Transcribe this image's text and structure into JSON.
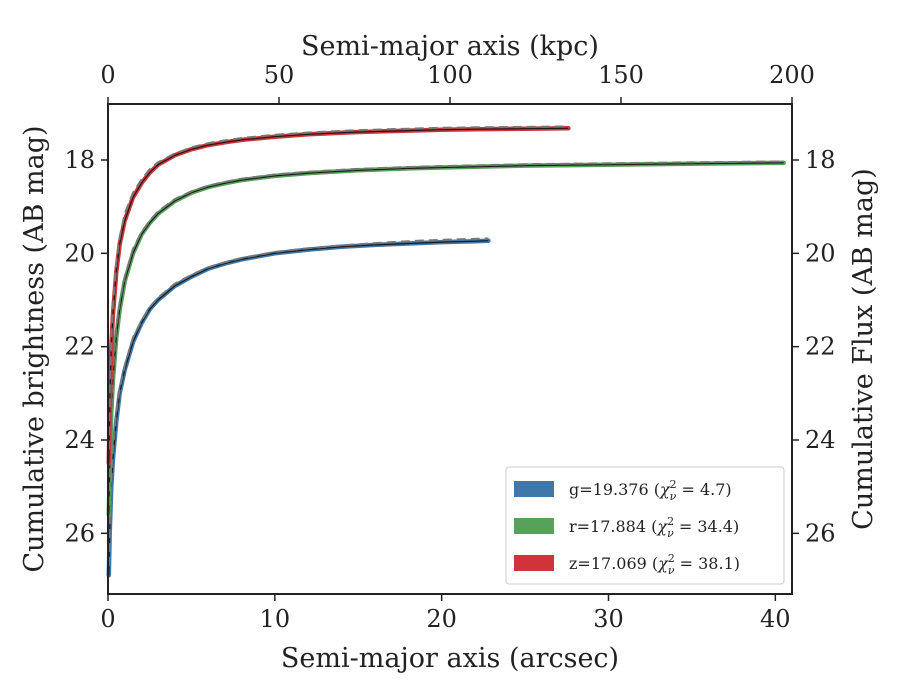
{
  "chart_data": {
    "type": "line",
    "xlabel": "Semi-major axis (arcsec)",
    "x2label": "Semi-major axis (kpc)",
    "ylabel": "Cumulative brightness (AB mag)",
    "y2label": "Cumulative Flux (AB mag)",
    "xlim": [
      0,
      41
    ],
    "x2lim": [
      0,
      200
    ],
    "ylim": [
      27.3,
      16.8
    ],
    "y_inverted": true,
    "xticks": [
      "0",
      "10",
      "20",
      "30",
      "40"
    ],
    "x2ticks": [
      "0",
      "50",
      "100",
      "150",
      "200"
    ],
    "yticks": [
      "18",
      "20",
      "22",
      "24",
      "26"
    ],
    "y2ticks": [
      "18",
      "20",
      "22",
      "24",
      "26"
    ],
    "grid": false,
    "legend_position": "lower-right",
    "series": [
      {
        "name": "g=19.376 (χ²ν = 4.7)",
        "legend_main": "g=19.376 (",
        "legend_var": "χ",
        "legend_sup": "2",
        "legend_sub": "ν",
        "legend_eq": " = 4.7)",
        "color": "#3f78a8",
        "x": [
          0.05,
          0.1,
          0.2,
          0.3,
          0.5,
          0.7,
          1.0,
          1.5,
          2,
          2.5,
          3,
          4,
          5,
          6,
          7,
          8,
          10,
          12,
          14,
          16,
          18,
          20,
          22,
          22.8
        ],
        "y": [
          26.9,
          26.0,
          25.0,
          24.4,
          23.6,
          23.0,
          22.5,
          21.9,
          21.5,
          21.2,
          21.0,
          20.7,
          20.5,
          20.33,
          20.22,
          20.13,
          20.0,
          19.92,
          19.86,
          19.82,
          19.79,
          19.76,
          19.74,
          19.73
        ],
        "model_y": [
          26.7,
          25.8,
          24.8,
          24.2,
          23.4,
          22.9,
          22.4,
          21.8,
          21.45,
          21.15,
          20.95,
          20.65,
          20.46,
          20.3,
          20.19,
          20.1,
          19.97,
          19.89,
          19.83,
          19.78,
          19.74,
          19.71,
          19.69,
          19.68
        ]
      },
      {
        "name": "r=17.884 (χ²ν = 34.4)",
        "legend_main": "r=17.884 (",
        "legend_var": "χ",
        "legend_sup": "2",
        "legend_sub": "ν",
        "legend_eq": " = 34.4)",
        "color": "#58a15a",
        "x": [
          0.05,
          0.1,
          0.2,
          0.3,
          0.5,
          0.7,
          1.0,
          1.5,
          2,
          2.5,
          3,
          4,
          5,
          6,
          7,
          8,
          10,
          12,
          15,
          18,
          20,
          25,
          30,
          35,
          40.5
        ],
        "y": [
          25.6,
          24.6,
          23.4,
          22.7,
          21.8,
          21.2,
          20.6,
          20.0,
          19.6,
          19.35,
          19.15,
          18.88,
          18.7,
          18.58,
          18.5,
          18.43,
          18.34,
          18.28,
          18.22,
          18.18,
          18.16,
          18.12,
          18.1,
          18.08,
          18.06
        ],
        "model_y": [
          25.4,
          24.4,
          23.2,
          22.5,
          21.6,
          21.05,
          20.5,
          19.9,
          19.55,
          19.3,
          19.1,
          18.84,
          18.67,
          18.55,
          18.47,
          18.4,
          18.31,
          18.25,
          18.19,
          18.15,
          18.13,
          18.09,
          18.07,
          18.05,
          18.03
        ]
      },
      {
        "name": "z=17.069 (χ²ν = 38.1)",
        "legend_main": "z=17.069 (",
        "legend_var": "χ",
        "legend_sup": "2",
        "legend_sub": "ν",
        "legend_eq": " = 38.1)",
        "color": "#d13438",
        "x": [
          0.05,
          0.1,
          0.2,
          0.3,
          0.5,
          0.7,
          1.0,
          1.5,
          2,
          2.5,
          3,
          4,
          5,
          6,
          7,
          8,
          10,
          12,
          15,
          18,
          20,
          22,
          25,
          27.6
        ],
        "y": [
          24.5,
          23.3,
          22.0,
          21.3,
          20.4,
          19.8,
          19.3,
          18.8,
          18.5,
          18.27,
          18.1,
          17.9,
          17.77,
          17.68,
          17.62,
          17.57,
          17.5,
          17.45,
          17.4,
          17.37,
          17.35,
          17.34,
          17.33,
          17.32
        ],
        "model_y": [
          24.2,
          23.0,
          21.8,
          21.1,
          20.2,
          19.65,
          19.15,
          18.7,
          18.42,
          18.2,
          18.05,
          17.86,
          17.73,
          17.64,
          17.58,
          17.53,
          17.46,
          17.41,
          17.36,
          17.33,
          17.31,
          17.3,
          17.29,
          17.28
        ]
      }
    ]
  }
}
